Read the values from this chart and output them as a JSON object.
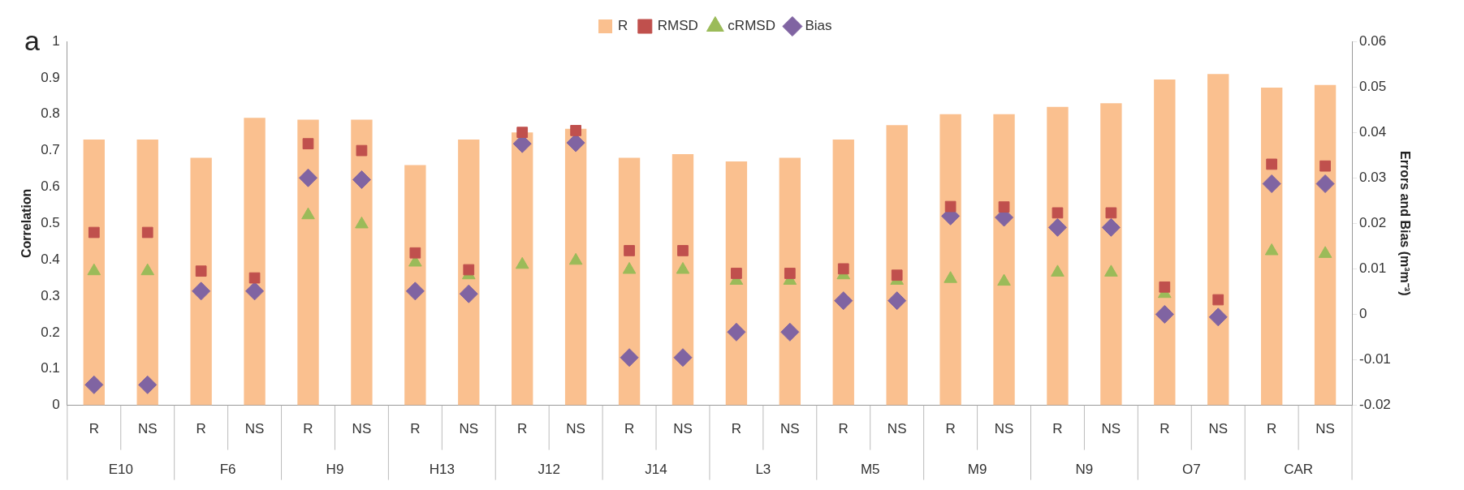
{
  "chart_data": {
    "type": "bar",
    "title": "a",
    "categories": [
      "R",
      "NS",
      "R",
      "NS",
      "R",
      "NS",
      "R",
      "NS",
      "R",
      "NS",
      "R",
      "NS",
      "R",
      "NS",
      "R",
      "NS",
      "R",
      "NS",
      "R",
      "NS",
      "R",
      "NS",
      "R",
      "NS"
    ],
    "annotations": [
      "E10",
      "F6",
      "H9",
      "H13",
      "J12",
      "J14",
      "L3",
      "M5",
      "M9",
      "N9",
      "O7",
      "CAR"
    ],
    "ylabel": "Correlation",
    "y2label": "Errors and Bias (m³m⁻³)",
    "series": [
      {
        "name": "R",
        "type": "bar",
        "color": "#fac08f",
        "values": [
          0.73,
          0.73,
          0.68,
          0.79,
          0.785,
          0.785,
          0.66,
          0.73,
          0.75,
          0.76,
          0.68,
          0.69,
          0.67,
          0.68,
          0.73,
          0.77,
          0.8,
          0.8,
          0.82,
          0.83,
          0.895,
          0.91,
          0.873,
          0.88
        ]
      },
      {
        "name": "RMSD",
        "type": "scatter",
        "axis": "y2",
        "marker": "square",
        "color": "#c0504d",
        "values": [
          0.018,
          0.018,
          0.0095,
          0.008,
          0.0375,
          0.036,
          0.0135,
          0.0098,
          0.04,
          0.0404,
          0.014,
          0.014,
          0.009,
          0.009,
          0.01,
          0.0086,
          0.0237,
          0.0236,
          0.0223,
          0.0223,
          0.006,
          0.0032,
          0.033,
          0.0326
        ]
      },
      {
        "name": "cRMSD",
        "type": "scatter",
        "axis": "y2",
        "marker": "triangle",
        "color": "#9bbb59",
        "values": [
          0.0095,
          0.0095,
          null,
          null,
          0.0218,
          0.0198,
          0.0114,
          0.0086,
          0.0109,
          0.0118,
          0.0098,
          0.0098,
          0.0074,
          0.0074,
          0.0086,
          0.0074,
          0.0078,
          0.0072,
          0.0092,
          0.0092,
          0.0045,
          null,
          0.0139,
          0.0133
        ]
      },
      {
        "name": "Bias",
        "type": "scatter",
        "axis": "y2",
        "marker": "diamond",
        "color": "#8064a2",
        "values": [
          -0.0155,
          -0.0155,
          0.0051,
          0.0051,
          0.03,
          0.0296,
          0.0051,
          0.0045,
          0.0375,
          0.0377,
          -0.0095,
          -0.0095,
          -0.0039,
          -0.0039,
          0.003,
          0.003,
          0.0216,
          0.0213,
          0.0191,
          0.0191,
          0.0,
          -0.0006,
          0.0287,
          0.0287
        ]
      }
    ],
    "ylim": [
      0,
      1
    ],
    "yticks": [
      0,
      0.1,
      0.2,
      0.3,
      0.4,
      0.5,
      0.6,
      0.7,
      0.8,
      0.9,
      1
    ],
    "y2lim": [
      -0.02,
      0.06
    ],
    "y2ticks": [
      -0.02,
      -0.01,
      0,
      0.01,
      0.02,
      0.03,
      0.04,
      0.05,
      0.06
    ],
    "grid": false,
    "legend": "top"
  }
}
